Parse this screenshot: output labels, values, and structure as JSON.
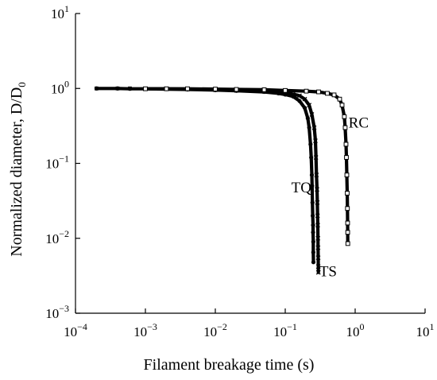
{
  "chart_data": {
    "type": "scatter",
    "title": "",
    "xlabel": "Filament breakage time (s)",
    "ylabel_main": "Normalized diameter, D/D",
    "ylabel_sub": "0",
    "x_scale": "log",
    "y_scale": "log",
    "xlim": [
      0.0001,
      10
    ],
    "ylim": [
      0.001,
      10
    ],
    "x_ticks": [
      {
        "value": 0.0001,
        "base": "10",
        "exp": "−4"
      },
      {
        "value": 0.001,
        "base": "10",
        "exp": "−3"
      },
      {
        "value": 0.01,
        "base": "10",
        "exp": "−2"
      },
      {
        "value": 0.1,
        "base": "10",
        "exp": "−1"
      },
      {
        "value": 1,
        "base": "10",
        "exp": "0"
      },
      {
        "value": 10,
        "base": "10",
        "exp": "1"
      }
    ],
    "y_ticks": [
      {
        "value": 0.001,
        "base": "10",
        "exp": "−3"
      },
      {
        "value": 0.01,
        "base": "10",
        "exp": "−2"
      },
      {
        "value": 0.1,
        "base": "10",
        "exp": "−1"
      },
      {
        "value": 1,
        "base": "10",
        "exp": "0"
      },
      {
        "value": 10,
        "base": "10",
        "exp": "1"
      }
    ],
    "grid": false,
    "legend": "none",
    "series": [
      {
        "name": "TQ",
        "marker": "circle",
        "color": "#000000",
        "x": [
          0.0002,
          0.0004,
          0.0006,
          0.001,
          0.002,
          0.004,
          0.01,
          0.02,
          0.05,
          0.08,
          0.1,
          0.13,
          0.16,
          0.19,
          0.21,
          0.22,
          0.23,
          0.235,
          0.24,
          0.242,
          0.245,
          0.247,
          0.25,
          0.25,
          0.252,
          0.252,
          0.253
        ],
        "y": [
          1.0,
          1.0,
          0.99,
          0.99,
          0.98,
          0.97,
          0.95,
          0.93,
          0.9,
          0.86,
          0.83,
          0.78,
          0.68,
          0.55,
          0.4,
          0.3,
          0.18,
          0.12,
          0.07,
          0.05,
          0.03,
          0.02,
          0.015,
          0.012,
          0.009,
          0.0065,
          0.0048
        ]
      },
      {
        "name": "TS",
        "marker": "x",
        "color": "#000000",
        "x": [
          0.001,
          0.002,
          0.004,
          0.01,
          0.02,
          0.05,
          0.1,
          0.13,
          0.16,
          0.19,
          0.22,
          0.24,
          0.26,
          0.27,
          0.275,
          0.28,
          0.285,
          0.288,
          0.29,
          0.292,
          0.294,
          0.295,
          0.296,
          0.297,
          0.298
        ],
        "y": [
          0.99,
          0.99,
          0.98,
          0.96,
          0.94,
          0.91,
          0.87,
          0.84,
          0.8,
          0.72,
          0.6,
          0.45,
          0.3,
          0.2,
          0.12,
          0.07,
          0.045,
          0.03,
          0.02,
          0.015,
          0.01,
          0.0075,
          0.0055,
          0.0042,
          0.0035
        ]
      },
      {
        "name": "RC",
        "marker": "square-open",
        "color": "#000000",
        "x": [
          0.001,
          0.002,
          0.004,
          0.01,
          0.02,
          0.05,
          0.1,
          0.2,
          0.3,
          0.4,
          0.5,
          0.6,
          0.65,
          0.7,
          0.72,
          0.74,
          0.75,
          0.76,
          0.77,
          0.775,
          0.78,
          0.782,
          0.785
        ],
        "y": [
          0.99,
          0.99,
          0.99,
          0.98,
          0.97,
          0.96,
          0.94,
          0.92,
          0.9,
          0.86,
          0.82,
          0.72,
          0.6,
          0.42,
          0.3,
          0.18,
          0.12,
          0.07,
          0.04,
          0.025,
          0.016,
          0.012,
          0.0085
        ]
      }
    ],
    "annotations": [
      {
        "text": "TQ",
        "x": 0.17,
        "y": 0.041
      },
      {
        "text": "TS",
        "x": 0.41,
        "y": 0.0031
      },
      {
        "text": "RC",
        "x": 1.12,
        "y": 0.3
      }
    ]
  }
}
